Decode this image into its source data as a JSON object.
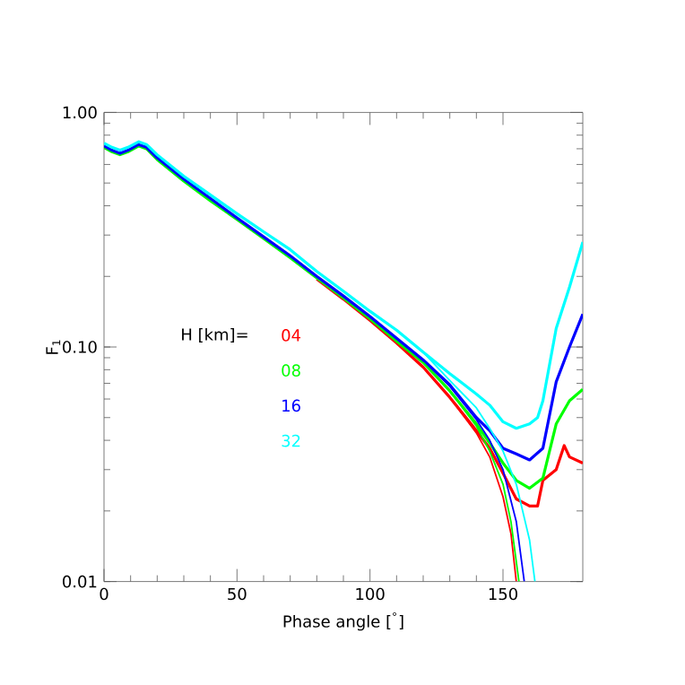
{
  "chart_data": {
    "type": "line",
    "xlabel": "Phase angle [$^{°}$]",
    "ylabel": "F$_{1}$",
    "legend_title": "H [km]=",
    "legend": "left",
    "log": "y",
    "grid": false,
    "xlim": [
      0,
      180
    ],
    "ylim": [
      0.01,
      1.0
    ],
    "xticks": [
      0,
      50,
      100,
      150
    ],
    "yticks": [
      {
        "value": 0.01,
        "label": "0.01"
      },
      {
        "value": 0.1,
        "label": "0.10"
      },
      {
        "value": 1.0,
        "label": "1.00"
      }
    ],
    "series": [
      {
        "name": "04",
        "color": "#ff0000",
        "x": [
          80,
          90,
          100,
          110,
          120,
          130,
          140,
          145,
          150,
          155,
          160,
          163,
          165,
          170,
          173,
          175,
          180
        ],
        "values": [
          0.195,
          0.16,
          0.13,
          0.104,
          0.082,
          0.061,
          0.044,
          0.037,
          0.029,
          0.0225,
          0.021,
          0.021,
          0.027,
          0.03,
          0.038,
          0.034,
          0.032
        ]
      },
      {
        "name": "08",
        "color": "#00ff00",
        "x": [
          0,
          3,
          6,
          9,
          13,
          16,
          20,
          30,
          40,
          50,
          60,
          70,
          80,
          90,
          100,
          110,
          120,
          130,
          140,
          145,
          150,
          155,
          160,
          165,
          170,
          175,
          180
        ],
        "values": [
          0.71,
          0.68,
          0.66,
          0.68,
          0.72,
          0.7,
          0.63,
          0.51,
          0.42,
          0.35,
          0.29,
          0.24,
          0.197,
          0.162,
          0.132,
          0.106,
          0.086,
          0.065,
          0.047,
          0.039,
          0.032,
          0.027,
          0.025,
          0.0276,
          0.047,
          0.059,
          0.066
        ]
      },
      {
        "name": "16",
        "color": "#0000ff",
        "x": [
          0,
          3,
          6,
          9,
          13,
          16,
          20,
          30,
          40,
          50,
          60,
          70,
          80,
          90,
          100,
          110,
          120,
          130,
          140,
          145,
          150,
          155,
          160,
          165,
          170,
          175,
          180
        ],
        "values": [
          0.72,
          0.69,
          0.67,
          0.69,
          0.73,
          0.71,
          0.64,
          0.52,
          0.43,
          0.355,
          0.295,
          0.245,
          0.2,
          0.165,
          0.135,
          0.109,
          0.088,
          0.069,
          0.05,
          0.044,
          0.037,
          0.035,
          0.033,
          0.037,
          0.071,
          0.1,
          0.138
        ]
      },
      {
        "name": "32",
        "color": "#00ffff",
        "x": [
          0,
          3,
          6,
          9,
          13,
          16,
          20,
          30,
          40,
          50,
          60,
          70,
          80,
          90,
          100,
          110,
          120,
          130,
          140,
          145,
          150,
          155,
          160,
          163,
          165,
          170,
          175,
          180
        ],
        "values": [
          0.74,
          0.71,
          0.69,
          0.71,
          0.75,
          0.73,
          0.66,
          0.535,
          0.445,
          0.37,
          0.31,
          0.26,
          0.21,
          0.173,
          0.142,
          0.118,
          0.095,
          0.077,
          0.063,
          0.0565,
          0.048,
          0.045,
          0.047,
          0.05,
          0.059,
          0.12,
          0.18,
          0.28
        ]
      },
      {
        "color": "#ff0000",
        "x": [
          120,
          130,
          140,
          145,
          150,
          153,
          155
        ],
        "values": [
          0.082,
          0.061,
          0.043,
          0.034,
          0.023,
          0.016,
          0.01
        ]
      },
      {
        "color": "#00ff00",
        "x": [
          120,
          130,
          140,
          145,
          150,
          153,
          156
        ],
        "values": [
          0.086,
          0.065,
          0.046,
          0.036,
          0.026,
          0.018,
          0.01
        ]
      },
      {
        "color": "#0000ff",
        "x": [
          120,
          130,
          140,
          145,
          150,
          155,
          158
        ],
        "values": [
          0.088,
          0.068,
          0.049,
          0.04,
          0.03,
          0.018,
          0.01
        ]
      },
      {
        "color": "#00ffff",
        "x": [
          120,
          130,
          140,
          145,
          150,
          155,
          160,
          162
        ],
        "values": [
          0.095,
          0.072,
          0.055,
          0.045,
          0.036,
          0.026,
          0.015,
          0.01
        ]
      }
    ]
  }
}
